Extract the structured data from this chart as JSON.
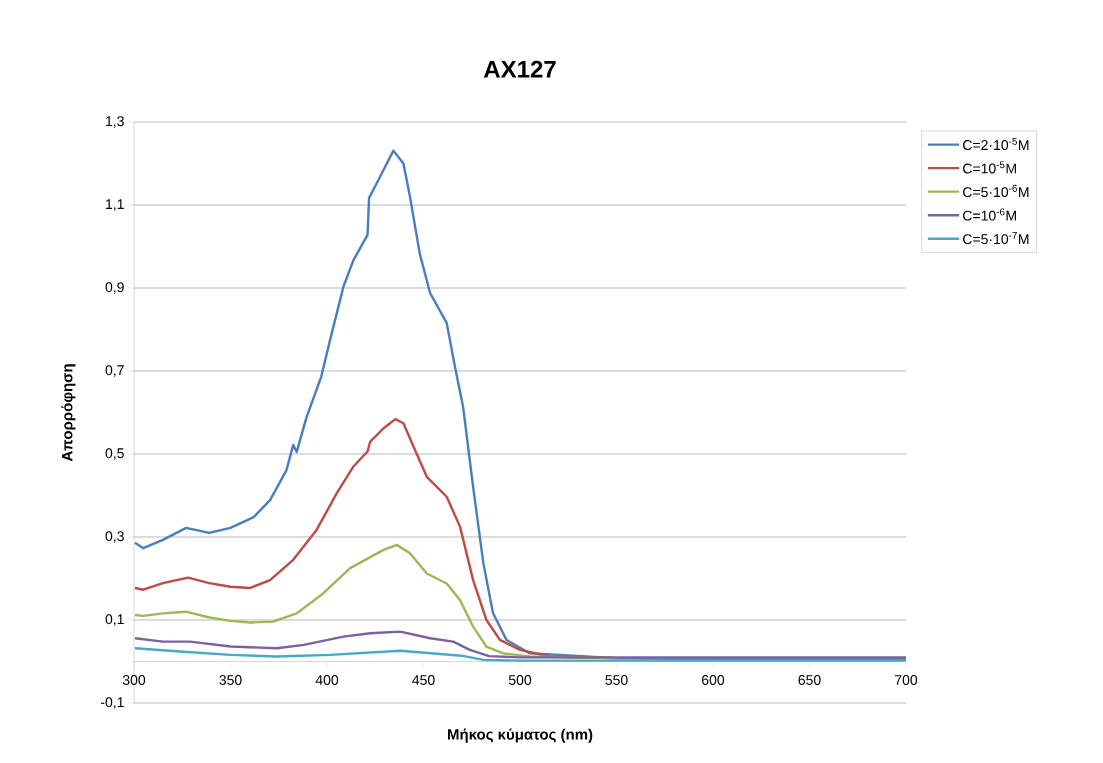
{
  "chart_data": {
    "type": "line",
    "title": "AX127",
    "xlabel": "Μήκος κύματος (nm)",
    "ylabel": "Απορρόφηση",
    "xlim": [
      300,
      700
    ],
    "xticks": [
      300,
      350,
      400,
      450,
      500,
      550,
      600,
      650,
      700
    ],
    "ylim": [
      -0.1,
      1.3
    ],
    "yticks": [
      {
        "value": -0.1,
        "label": "-0,1"
      },
      {
        "value": 0.1,
        "label": "0,1"
      },
      {
        "value": 0.3,
        "label": "0,3"
      },
      {
        "value": 0.5,
        "label": "0,5"
      },
      {
        "value": 0.7,
        "label": "0,7"
      },
      {
        "value": 0.9,
        "label": "0,9"
      },
      {
        "value": 1.1,
        "label": "1,1"
      },
      {
        "value": 1.3,
        "label": "1,3"
      }
    ],
    "grid": "y",
    "legend": "right",
    "series": [
      {
        "name": "C=2·10$^{-5}$M",
        "color": "#4a7ebb",
        "x": [
          300.5,
          304.8,
          315,
          327,
          339,
          350,
          362,
          370.5,
          379,
          382.5,
          384.3,
          389.5,
          397,
          401.6,
          408.5,
          413.7,
          421,
          421.8,
          427.5,
          434.4,
          439.6,
          443,
          448,
          453.4,
          462,
          466.3,
          470.5,
          475.7,
          481,
          486,
          493,
          505,
          550,
          600,
          650,
          700
        ],
        "values": [
          0.286,
          0.273,
          0.293,
          0.322,
          0.31,
          0.322,
          0.348,
          0.389,
          0.461,
          0.522,
          0.505,
          0.59,
          0.686,
          0.775,
          0.903,
          0.967,
          1.028,
          1.117,
          1.168,
          1.231,
          1.2,
          1.12,
          0.984,
          0.888,
          0.816,
          0.71,
          0.614,
          0.421,
          0.237,
          0.117,
          0.052,
          0.02,
          0.008,
          0.006,
          0.006,
          0.006
        ]
      },
      {
        "name": "C=10$^{-5}$M",
        "color": "#be4b48",
        "x": [
          300.5,
          304.8,
          315,
          328,
          339,
          350,
          360,
          370.5,
          382.5,
          394.6,
          405,
          413.7,
          421,
          422.4,
          429.3,
          435.4,
          439.6,
          444.8,
          451.7,
          462,
          468.9,
          475.7,
          482.6,
          489.6,
          500,
          515.5,
          550
        ],
        "values": [
          0.177,
          0.173,
          0.189,
          0.202,
          0.189,
          0.18,
          0.177,
          0.196,
          0.245,
          0.317,
          0.405,
          0.47,
          0.506,
          0.53,
          0.562,
          0.584,
          0.574,
          0.518,
          0.445,
          0.397,
          0.325,
          0.196,
          0.1,
          0.052,
          0.028,
          0.012,
          0.008
        ]
      },
      {
        "name": "C=5·10$^{-6}$M",
        "color": "#98b954",
        "x": [
          300.5,
          304.8,
          315,
          327,
          339,
          350,
          360,
          372,
          384.3,
          398,
          412,
          421.5,
          429.3,
          436.2,
          443,
          451.7,
          462,
          468.9,
          475.7,
          482.6,
          491,
          505,
          550
        ],
        "values": [
          0.112,
          0.11,
          0.116,
          0.12,
          0.106,
          0.098,
          0.094,
          0.096,
          0.116,
          0.164,
          0.225,
          0.249,
          0.269,
          0.281,
          0.261,
          0.212,
          0.188,
          0.148,
          0.084,
          0.036,
          0.02,
          0.012,
          0.008
        ]
      },
      {
        "name": "C=10$^{-6}$M",
        "color": "#7d60a0",
        "x": [
          300.5,
          315,
          329,
          350,
          374,
          388,
          408.5,
          422.4,
          438,
          453.4,
          465.4,
          474,
          484,
          500,
          550,
          600,
          650,
          700
        ],
        "values": [
          0.056,
          0.048,
          0.048,
          0.036,
          0.032,
          0.04,
          0.06,
          0.068,
          0.072,
          0.056,
          0.048,
          0.028,
          0.013,
          0.01,
          0.01,
          0.01,
          0.01,
          0.01
        ]
      },
      {
        "name": "C=5·10$^{-7}$M",
        "color": "#46aac5",
        "x": [
          300.5,
          324,
          350,
          374,
          401.6,
          438,
          458.5,
          469.7,
          481,
          500,
          550,
          600,
          650,
          700
        ],
        "values": [
          0.032,
          0.024,
          0.016,
          0.012,
          0.016,
          0.026,
          0.018,
          0.014,
          0.004,
          0.002,
          0.002,
          0.002,
          0.002,
          0.002
        ]
      }
    ]
  }
}
